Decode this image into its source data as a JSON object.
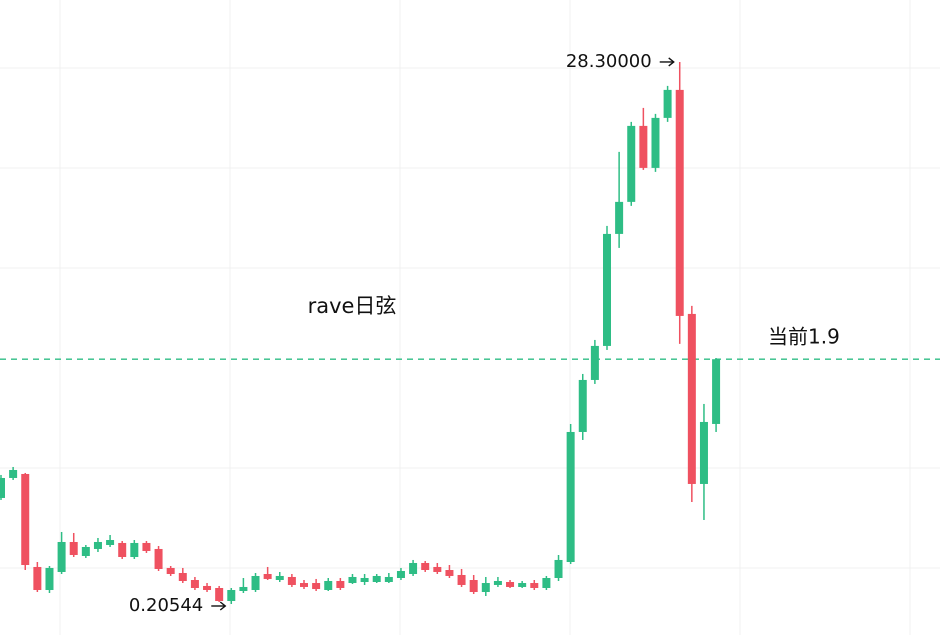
{
  "chart_data": {
    "type": "candlestick",
    "title": "rave日弦",
    "log_scale": true,
    "ylim": [
      0.155,
      49.7
    ],
    "up_color": "#2ebd85",
    "down_color": "#ef5160",
    "open": [
      0.5384,
      0.6457,
      0.6696,
      0.2876,
      0.2333,
      0.2748,
      0.3609,
      0.3178,
      0.3387,
      0.3512,
      0.3577,
      0.3149,
      0.3577,
      0.3387,
      0.285,
      0.2723,
      0.2555,
      0.242,
      0.2376,
      0.2111,
      0.2312,
      0.2333,
      0.2698,
      0.2555,
      0.2626,
      0.2486,
      0.2486,
      0.2333,
      0.2532,
      0.2486,
      0.2509,
      0.2509,
      0.2509,
      0.2602,
      0.2698,
      0.2982,
      0.2876,
      0.2798,
      0.2674,
      0.2555,
      0.2291,
      0.2442,
      0.2509,
      0.2398,
      0.2486,
      0.2376,
      0.2602,
      0.3009,
      0.9808,
      1.5734,
      2.1436,
      5.9317,
      7.9364,
      15.831,
      10.808,
      17.025,
      21.957,
      2.8669,
      0.6115,
      1.0549
    ],
    "high": [
      0.6636,
      0.7136,
      0.6758,
      0.3009,
      0.2902,
      0.3953,
      0.3917,
      0.3512,
      0.3743,
      0.3846,
      0.3642,
      0.3675,
      0.3642,
      0.348,
      0.2902,
      0.285,
      0.2626,
      0.2486,
      0.242,
      0.2376,
      0.2602,
      0.2723,
      0.2876,
      0.2748,
      0.2698,
      0.2555,
      0.2579,
      0.2602,
      0.2602,
      0.2698,
      0.2698,
      0.2698,
      0.2723,
      0.285,
      0.3065,
      0.3037,
      0.2982,
      0.2928,
      0.2824,
      0.2674,
      0.2626,
      0.2626,
      0.2555,
      0.2532,
      0.2555,
      0.265,
      0.3207,
      1.0549,
      1.6618,
      2.2635,
      6.3796,
      12.501,
      16.419,
      18.642,
      17.656,
      22.769,
      28.3,
      3.0832,
      1.2652,
      1.92
    ],
    "low": [
      0.5287,
      0.6341,
      0.2798,
      0.2291,
      0.227,
      0.2698,
      0.3149,
      0.3121,
      0.3296,
      0.3449,
      0.3093,
      0.3093,
      0.3266,
      0.2773,
      0.265,
      0.2486,
      0.2333,
      0.2291,
      0.2092,
      0.20544,
      0.227,
      0.2291,
      0.2555,
      0.2509,
      0.2398,
      0.2354,
      0.2312,
      0.2312,
      0.2333,
      0.2464,
      0.2442,
      0.2486,
      0.2486,
      0.2555,
      0.265,
      0.2748,
      0.2698,
      0.2602,
      0.2398,
      0.225,
      0.2209,
      0.2398,
      0.2376,
      0.2376,
      0.2333,
      0.2333,
      0.2532,
      0.2955,
      0.9121,
      1.5174,
      2.0667,
      5.2231,
      7.653,
      10.613,
      10.422,
      16.419,
      2.1828,
      0.5192,
      0.4408,
      0.9808
    ],
    "close": [
      0.6457,
      0.6944,
      0.2928,
      0.2333,
      0.285,
      0.3609,
      0.3207,
      0.3449,
      0.3609,
      0.3675,
      0.3149,
      0.3577,
      0.3326,
      0.2824,
      0.2698,
      0.2532,
      0.2376,
      0.2333,
      0.2111,
      0.2333,
      0.2398,
      0.265,
      0.2579,
      0.265,
      0.2442,
      0.2398,
      0.2354,
      0.2532,
      0.2376,
      0.2626,
      0.2602,
      0.265,
      0.2626,
      0.2773,
      0.2982,
      0.2798,
      0.2748,
      0.265,
      0.2442,
      0.2291,
      0.2486,
      0.2532,
      0.2398,
      0.2486,
      0.2376,
      0.2602,
      0.3065,
      0.9808,
      1.5734,
      2.1436,
      5.9317,
      7.9364,
      15.831,
      10.808,
      17.025,
      21.957,
      2.8153,
      0.6115,
      1.0742,
      1.9
    ],
    "extremes": [
      {
        "value": 28.3,
        "label": "28.30000"
      },
      {
        "value": 0.20544,
        "label": "0.20544"
      }
    ],
    "current": {
      "value": 1.9,
      "label": "当前1.9",
      "color": "#2ebd85"
    }
  }
}
